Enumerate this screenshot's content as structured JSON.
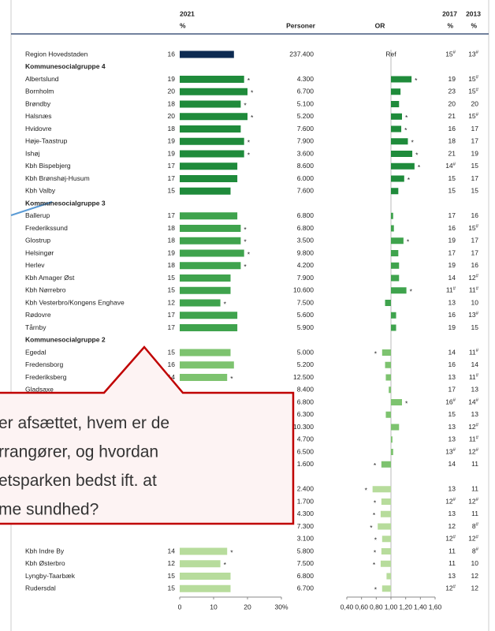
{
  "headers": {
    "y2021": "2021",
    "pct2021": "%",
    "persons": "Personer",
    "or": "OR",
    "y2017": "2017",
    "y2013": "2013",
    "pct2017": "%",
    "pct2013": "%"
  },
  "callout": {
    "lines": [
      "er afsættet, hvem er de",
      "rrangører, og hvordan",
      "etsparken bedst ift. at",
      "me sundhed?"
    ]
  },
  "chart_data": {
    "type": "table-bar",
    "xlim": [
      0,
      30
    ],
    "xticks": [
      0,
      10,
      20,
      {
        "value": 30,
        "label": "30%"
      }
    ],
    "or_lim": [
      0.4,
      1.6
    ],
    "or_ticks": [
      {
        "value": 0.4,
        "label": "0,40"
      },
      {
        "value": 0.6,
        "label": "0,60"
      },
      {
        "value": 0.8,
        "label": "0,80"
      },
      {
        "value": 1.0,
        "label": "1,00"
      },
      {
        "value": 1.2,
        "label": "1,20"
      },
      {
        "value": 1.4,
        "label": "1,40"
      },
      {
        "value": 1.6,
        "label": "1,60"
      }
    ],
    "region": {
      "color": "#0d2b52",
      "row": {
        "name": "Region Hovedstaden",
        "pct": 16,
        "persons": "237.400",
        "or_label": "Ref",
        "y2017": "15#",
        "y2013": "13#"
      }
    },
    "groups": [
      {
        "name": "Kommunesocialgruppe 4",
        "color": "#1f8b3b",
        "rows": [
          {
            "name": "Albertslund",
            "pct": 19,
            "pct_mark": "*",
            "persons": "4.300",
            "or": 1.28,
            "or_mark": "*",
            "y2017": "19",
            "y2013": "15#"
          },
          {
            "name": "Bornholm",
            "pct": 20,
            "pct_mark": "*",
            "persons": "6.700",
            "or": 1.13,
            "y2017": "23",
            "y2013": "15#"
          },
          {
            "name": "Brøndby",
            "pct": 18,
            "pct_mark": "*",
            "persons": "5.100",
            "or": 1.11,
            "y2017": "20",
            "y2013": "20"
          },
          {
            "name": "Halsnæs",
            "pct": 20,
            "pct_mark": "*",
            "persons": "5.200",
            "or": 1.15,
            "or_mark": "*",
            "y2017": "21",
            "y2013": "15#"
          },
          {
            "name": "Hvidovre",
            "pct": 18,
            "persons": "7.600",
            "or": 1.14,
            "or_mark": "*",
            "y2017": "16",
            "y2013": "17"
          },
          {
            "name": "Høje-Taastrup",
            "pct": 19,
            "pct_mark": "*",
            "persons": "7.900",
            "or": 1.23,
            "or_mark": "*",
            "y2017": "18",
            "y2013": "17"
          },
          {
            "name": "Ishøj",
            "pct": 19,
            "pct_mark": "*",
            "persons": "3.600",
            "or": 1.29,
            "or_mark": "*",
            "y2017": "21",
            "y2013": "19"
          },
          {
            "name": "Kbh Bispebjerg",
            "pct": 17,
            "persons": "8.600",
            "or": 1.32,
            "or_mark": "*",
            "y2017": "14#",
            "y2013": "15"
          },
          {
            "name": "Kbh Brønshøj-Husum",
            "pct": 17,
            "persons": "6.000",
            "or": 1.18,
            "or_mark": "*",
            "y2017": "15",
            "y2013": "17"
          },
          {
            "name": "Kbh Valby",
            "pct": 15,
            "persons": "7.600",
            "or": 1.1,
            "y2017": "15",
            "y2013": "15"
          }
        ]
      },
      {
        "name": "Kommunesocialgruppe 3",
        "color": "#3fa34d",
        "rows": [
          {
            "name": "Ballerup",
            "pct": 17,
            "persons": "6.800",
            "or": 1.03,
            "y2017": "17",
            "y2013": "16"
          },
          {
            "name": "Frederikssund",
            "pct": 18,
            "pct_mark": "*",
            "persons": "6.800",
            "or": 1.04,
            "y2017": "16",
            "y2013": "15#"
          },
          {
            "name": "Glostrup",
            "pct": 18,
            "pct_mark": "*",
            "persons": "3.500",
            "or": 1.17,
            "or_mark": "*",
            "y2017": "19",
            "y2013": "17"
          },
          {
            "name": "Helsingør",
            "pct": 19,
            "pct_mark": "*",
            "persons": "9.800",
            "or": 1.1,
            "y2017": "17",
            "y2013": "17"
          },
          {
            "name": "Herlev",
            "pct": 18,
            "pct_mark": "*",
            "persons": "4.200",
            "or": 1.11,
            "y2017": "19",
            "y2013": "16"
          },
          {
            "name": "Kbh Amager Øst",
            "pct": 15,
            "persons": "7.900",
            "or": 1.11,
            "y2017": "14",
            "y2013": "12#"
          },
          {
            "name": "Kbh Nørrebro",
            "pct": 15,
            "persons": "10.600",
            "or": 1.21,
            "or_mark": "*",
            "y2017": "11#",
            "y2013": "11#"
          },
          {
            "name": "Kbh Vesterbro/Kongens Enghave",
            "pct": 12,
            "pct_mark": "*",
            "persons": "7.500",
            "or": 0.92,
            "y2017": "13",
            "y2013": "10"
          },
          {
            "name": "Rødovre",
            "pct": 17,
            "persons": "5.600",
            "or": 1.07,
            "y2017": "16",
            "y2013": "13#"
          },
          {
            "name": "Tårnby",
            "pct": 17,
            "persons": "5.900",
            "or": 1.07,
            "y2017": "19",
            "y2013": "15"
          }
        ]
      },
      {
        "name": "Kommunesocialgruppe 2",
        "color": "#7dc36f",
        "rows": [
          {
            "name": "Egedal",
            "pct": 15,
            "persons": "5.000",
            "or": 0.88,
            "or_mark": "*",
            "y2017": "14",
            "y2013": "11#"
          },
          {
            "name": "Fredensborg",
            "pct": 16,
            "persons": "5.200",
            "or": 0.92,
            "y2017": "16",
            "y2013": "14"
          },
          {
            "name": "Frederiksberg",
            "pct": 14,
            "pct_mark": "*",
            "persons": "12.500",
            "or": 0.93,
            "y2017": "13",
            "y2013": "11#"
          },
          {
            "name": "Gladsaxe",
            "pct": null,
            "persons": "8.400",
            "or": 0.97,
            "y2017": "17",
            "y2013": "13"
          },
          {
            "name": null,
            "pct": null,
            "persons": "6.800",
            "or": 1.15,
            "or_mark": "*",
            "y2017": "16#",
            "y2013": "14#"
          },
          {
            "name": null,
            "pct": null,
            "persons": "6.300",
            "or": 0.93,
            "y2017": "15",
            "y2013": "13"
          },
          {
            "name": null,
            "pct": null,
            "persons": "10.300",
            "or": 1.11,
            "y2017": "13",
            "y2013": "12#"
          },
          {
            "name": null,
            "pct": null,
            "persons": "4.700",
            "or": 1.02,
            "y2017": "13",
            "y2013": "11#"
          },
          {
            "name": null,
            "pct": null,
            "persons": "6.500",
            "or": 1.03,
            "y2017": "13#",
            "y2013": "12#"
          },
          {
            "name": null,
            "pct": null,
            "persons": "1.600",
            "or": 0.87,
            "or_mark": "*",
            "y2017": "14",
            "y2013": "11"
          }
        ]
      },
      {
        "name": null,
        "color": "#b7dc9c",
        "rows": [
          {
            "name": null,
            "pct": null,
            "persons": "2.400",
            "or": 0.75,
            "or_mark": "*",
            "y2017": "13",
            "y2013": "11"
          },
          {
            "name": null,
            "pct": null,
            "persons": "1.700",
            "or": 0.87,
            "or_mark": "*",
            "y2017": "12#",
            "y2013": "12#"
          },
          {
            "name": null,
            "pct": null,
            "persons": "4.300",
            "or": 0.86,
            "or_mark": "*",
            "y2017": "13",
            "y2013": "11"
          },
          {
            "name": null,
            "pct": null,
            "persons": "7.300",
            "or": 0.82,
            "or_mark": "*",
            "y2017": "12",
            "y2013": "8#"
          },
          {
            "name": null,
            "pct": null,
            "persons": "3.100",
            "or": 0.88,
            "or_mark": "*",
            "y2017": "12#",
            "y2013": "12#"
          },
          {
            "name": "Kbh Indre By",
            "pct": 14,
            "pct_mark": "*",
            "persons": "5.800",
            "or": 0.87,
            "or_mark": "*",
            "y2017": "11",
            "y2013": "8#"
          },
          {
            "name": "Kbh Østerbro",
            "pct": 12,
            "pct_mark": "*",
            "persons": "7.500",
            "or": 0.86,
            "or_mark": "*",
            "y2017": "11",
            "y2013": "10"
          },
          {
            "name": "Lyngby-Taarbæk",
            "pct": 15,
            "persons": "6.800",
            "or": 0.94,
            "y2017": "13",
            "y2013": "12"
          },
          {
            "name": "Rudersdal",
            "pct": 15,
            "persons": "6.700",
            "or": 0.88,
            "or_mark": "*",
            "y2017": "12#",
            "y2013": "12"
          }
        ]
      }
    ]
  }
}
